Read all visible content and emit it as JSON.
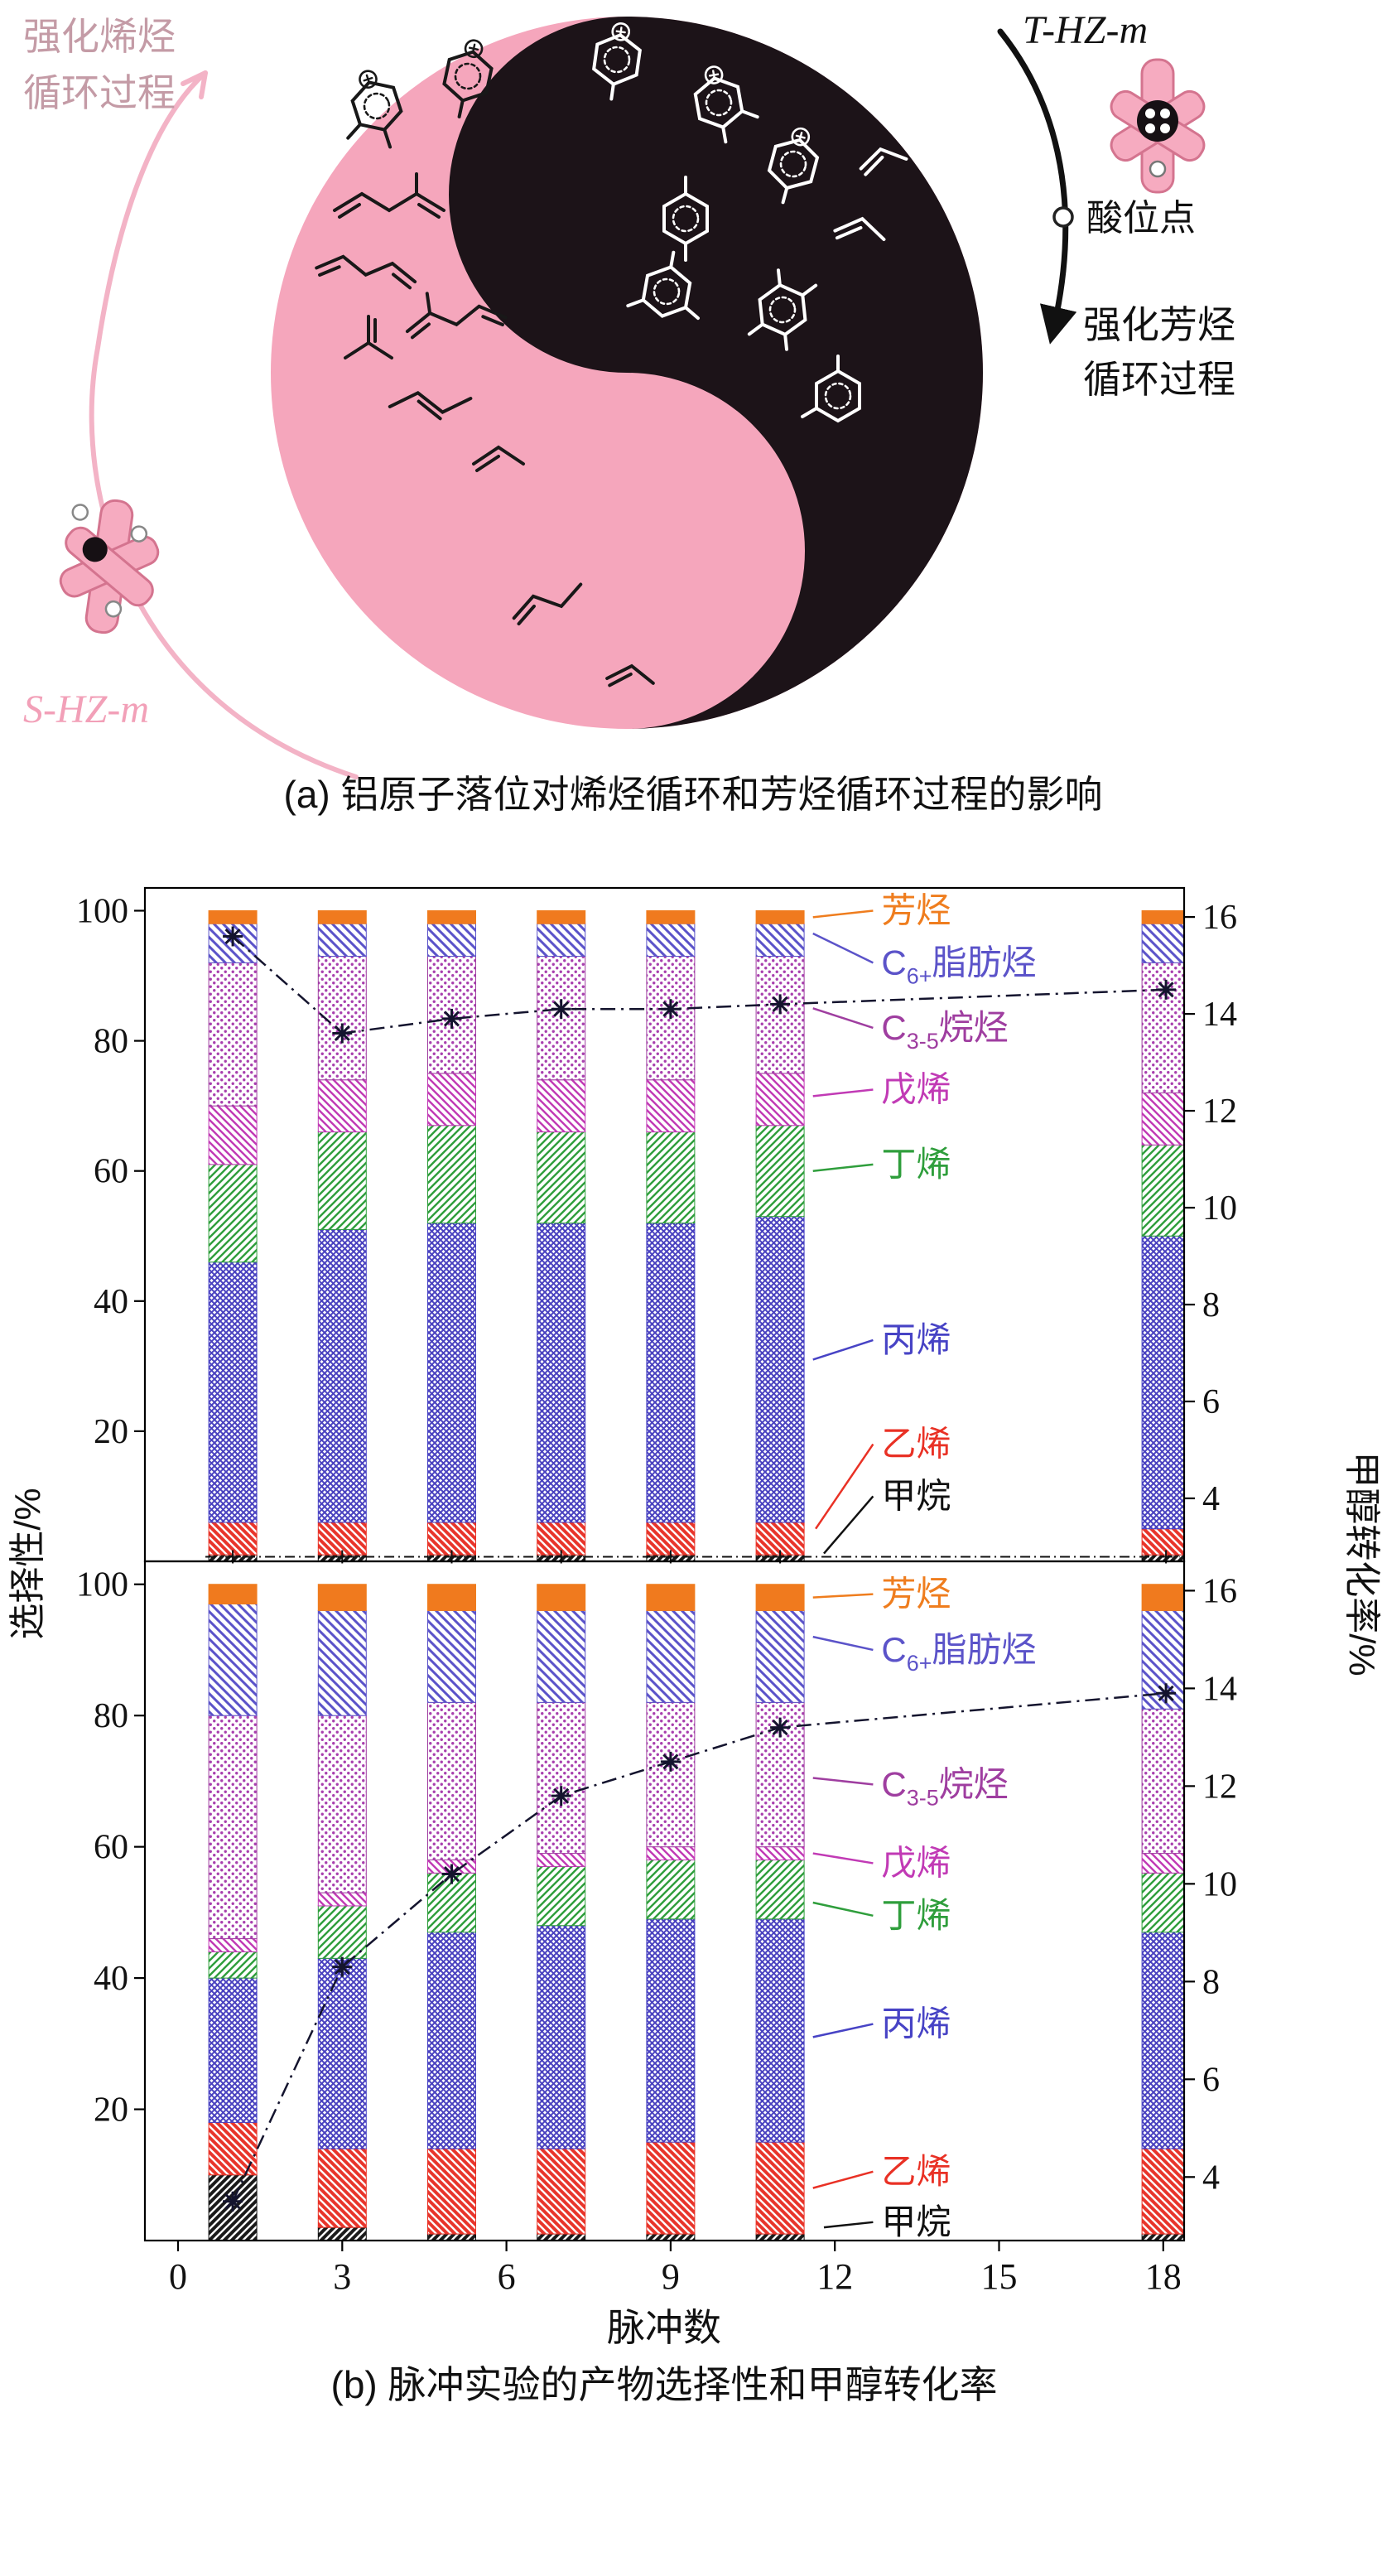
{
  "panel_a": {
    "olefin_text_line1": "强化烯烃",
    "olefin_text_line2": "循环过程",
    "aromatic_text_line1": "强化芳烃",
    "aromatic_text_line2": "循环过程",
    "t_sample_label": "T-HZ-m",
    "s_sample_label": "S-HZ-m",
    "acid_site_label": "酸位点",
    "caption": "(a) 铝原子落位对烯烃循环和芳烃循环过程的影响",
    "colors": {
      "yin_pink": "#f5a6bc",
      "yang_black": "#1c1318",
      "olefin_text": "#c49ba6",
      "s_label_pink": "#f2a0b8",
      "crystal_fill": "#f6abc0",
      "crystal_edge": "#d4748f"
    }
  },
  "panel_b": {
    "caption": "(b) 脉冲实验的产物选择性和甲醇转化率"
  },
  "legend": [
    {
      "key": "aromatics",
      "name": "芳烃",
      "color": "#ef7d1e",
      "parts": [
        {
          "t": "芳烃"
        }
      ],
      "pattern": {
        "kind": "solid",
        "bg": "#f07a1e",
        "fg": "#f07a1e"
      }
    },
    {
      "key": "c6plus",
      "name": "C6+脂肪烃",
      "color": "#5b53c9",
      "parts": [
        {
          "t": "C"
        },
        {
          "t": "6+",
          "sub": true
        },
        {
          "t": "脂肪烃"
        }
      ],
      "pattern": {
        "kind": "hatch-down",
        "bg": "#ffffff",
        "fg": "#5b53c9"
      }
    },
    {
      "key": "alkanes",
      "name": "C3-5烷烃",
      "color": "#9f3ea0",
      "parts": [
        {
          "t": "C"
        },
        {
          "t": "3-5",
          "sub": true
        },
        {
          "t": "烷烃"
        }
      ],
      "pattern": {
        "kind": "dots",
        "bg": "#ffffff",
        "fg": "#a83fae"
      }
    },
    {
      "key": "pentene",
      "name": "戊烯",
      "color": "#c13ab5",
      "parts": [
        {
          "t": "戊烯"
        }
      ],
      "pattern": {
        "kind": "hatch-down",
        "bg": "#ffffff",
        "fg": "#c13ab5"
      }
    },
    {
      "key": "butene",
      "name": "丁烯",
      "color": "#2f9e3c",
      "parts": [
        {
          "t": "丁烯"
        }
      ],
      "pattern": {
        "kind": "hatch-up",
        "bg": "#ffffff",
        "fg": "#2f9e3c"
      }
    },
    {
      "key": "propylene",
      "name": "丙烯",
      "color": "#4743c5",
      "parts": [
        {
          "t": "丙烯"
        }
      ],
      "pattern": {
        "kind": "cross",
        "bg": "#ffffff",
        "fg": "#4a42c0"
      }
    },
    {
      "key": "ethylene",
      "name": "乙烯",
      "color": "#e93125",
      "parts": [
        {
          "t": "乙烯"
        }
      ],
      "pattern": {
        "kind": "hatch-down",
        "bg": "#e8352b",
        "fg": "#ffffff"
      }
    },
    {
      "key": "methane",
      "name": "甲烷",
      "color": "#111111",
      "parts": [
        {
          "t": "甲烷"
        }
      ],
      "pattern": {
        "kind": "hatch-up",
        "bg": "#1a1a1a",
        "fg": "#ffffff"
      }
    }
  ],
  "chart_data": {
    "type": "stacked-bar-with-line",
    "x_label": "脉冲数",
    "x_ticks": [
      0,
      3,
      6,
      9,
      12,
      15,
      18
    ],
    "left_axis": {
      "label": "选择性/%",
      "ticks": [
        20,
        40,
        60,
        80,
        100
      ],
      "max": 103.5
    },
    "right_axis": {
      "label": "甲醇转化率/%",
      "ticks": [
        4,
        6,
        8,
        10,
        12,
        14,
        16
      ],
      "min": 2.7,
      "max": 16.6
    },
    "pulses": [
      1,
      3,
      5,
      7,
      9,
      11,
      19
    ],
    "stack_order": [
      "methane",
      "ethylene",
      "propylene",
      "butene",
      "pentene",
      "alkanes",
      "c6plus",
      "aromatics"
    ],
    "line_color": "#14142e",
    "panels": [
      {
        "name": "top",
        "selectivity": {
          "methane": [
            1,
            1,
            1,
            1,
            1,
            1,
            1
          ],
          "ethylene": [
            5,
            5,
            5,
            5,
            5,
            5,
            4
          ],
          "propylene": [
            40,
            45,
            46,
            46,
            46,
            47,
            45
          ],
          "butene": [
            15,
            15,
            15,
            14,
            14,
            14,
            14
          ],
          "pentene": [
            9,
            8,
            8,
            8,
            8,
            8,
            8
          ],
          "alkanes": [
            22,
            19,
            18,
            19,
            19,
            18,
            20
          ],
          "c6plus": [
            6,
            5,
            5,
            5,
            5,
            5,
            6
          ],
          "aromatics": [
            2,
            2,
            2,
            2,
            2,
            2,
            2
          ]
        },
        "conversion": [
          15.6,
          13.6,
          13.9,
          14.1,
          14.1,
          14.2,
          14.5
        ],
        "baseline_trace": 0.7,
        "annotations": {
          "aromatics": {
            "ly": 100,
            "tx": 11.6,
            "ty": 99
          },
          "c6plus": {
            "ly": 92,
            "tx": 11.6,
            "ty": 96.5
          },
          "alkanes": {
            "ly": 82,
            "tx": 11.6,
            "ty": 85
          },
          "pentene": {
            "ly": 72.5,
            "tx": 11.6,
            "ty": 71.5
          },
          "butene": {
            "ly": 61,
            "tx": 11.6,
            "ty": 60
          },
          "propylene": {
            "ly": 34,
            "tx": 11.6,
            "ty": 31
          },
          "ethylene": {
            "ly": 18,
            "tx": 11.65,
            "ty": 5
          },
          "methane": {
            "ly": 10,
            "tx": 11.8,
            "ty": 1.2
          }
        }
      },
      {
        "name": "bottom",
        "selectivity": {
          "methane": [
            10,
            2,
            1,
            1,
            1,
            1,
            1
          ],
          "ethylene": [
            8,
            12,
            13,
            13,
            14,
            14,
            13
          ],
          "propylene": [
            22,
            29,
            33,
            34,
            34,
            34,
            33
          ],
          "butene": [
            4,
            8,
            9,
            9,
            9,
            9,
            9
          ],
          "pentene": [
            2,
            2,
            2,
            2,
            2,
            2,
            3
          ],
          "alkanes": [
            34,
            27,
            24,
            23,
            22,
            22,
            22
          ],
          "c6plus": [
            17,
            16,
            14,
            14,
            14,
            14,
            15
          ],
          "aromatics": [
            3,
            4,
            4,
            4,
            4,
            4,
            4
          ]
        },
        "conversion": [
          3.5,
          8.3,
          10.2,
          11.8,
          12.5,
          13.2,
          13.9
        ],
        "annotations": {
          "aromatics": {
            "ly": 98.5,
            "tx": 11.6,
            "ty": 98
          },
          "c6plus": {
            "ly": 90,
            "tx": 11.6,
            "ty": 92
          },
          "alkanes": {
            "ly": 69.5,
            "tx": 11.6,
            "ty": 70.5
          },
          "pentene": {
            "ly": 57.5,
            "tx": 11.6,
            "ty": 59
          },
          "butene": {
            "ly": 49.5,
            "tx": 11.6,
            "ty": 51.5
          },
          "propylene": {
            "ly": 33,
            "tx": 11.6,
            "ty": 31
          },
          "ethylene": {
            "ly": 10.5,
            "tx": 11.6,
            "ty": 8
          },
          "methane": {
            "ly": 2.8,
            "tx": 11.8,
            "ty": 2
          }
        }
      }
    ]
  }
}
